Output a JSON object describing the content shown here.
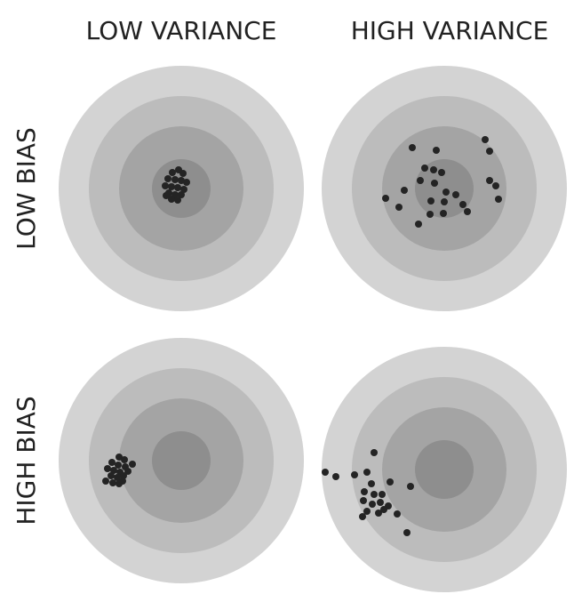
{
  "columns": [
    {
      "label": "LOW VARIANCE"
    },
    {
      "label": "HIGH VARIANCE"
    }
  ],
  "rows": [
    {
      "label": "LOW BIAS"
    },
    {
      "label": "HIGH BIAS"
    }
  ],
  "colors": {
    "ring_outer": "#d3d3d3",
    "ring_2": "#bcbcbc",
    "ring_3": "#a4a4a4",
    "bullseye": "#8e8e8e",
    "shot": "#242424",
    "label": "#222222"
  }
}
